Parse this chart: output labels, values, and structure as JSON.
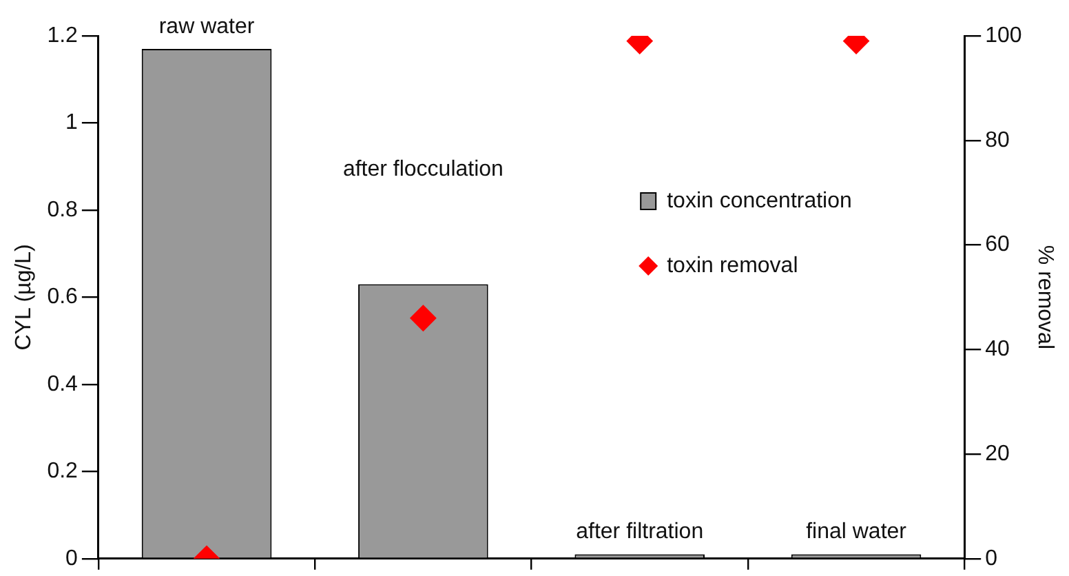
{
  "chart_data": {
    "type": "bar",
    "categories": [
      "raw water",
      "after flocculation",
      "after filtration",
      "final water"
    ],
    "ylabel": "CYL (µg/L)",
    "y2label": "% removal",
    "ylim": [
      0,
      1.2
    ],
    "yticks": [
      0,
      0.2,
      0.4,
      0.6,
      0.8,
      1,
      1.2
    ],
    "y2lim": [
      0,
      100
    ],
    "y2ticks": [
      0,
      20,
      40,
      60,
      80,
      100
    ],
    "grid": false,
    "legend": "right",
    "series": [
      {
        "name": "toxin concentration",
        "color": "#999999",
        "values": [
          1.17,
          0.63,
          0.01,
          0.01
        ]
      },
      {
        "name": "toxin removal",
        "type": "scatter",
        "axis": "y2",
        "marker": "diamond",
        "color": "#ff0000",
        "values": [
          0,
          46,
          99,
          99
        ]
      }
    ]
  }
}
